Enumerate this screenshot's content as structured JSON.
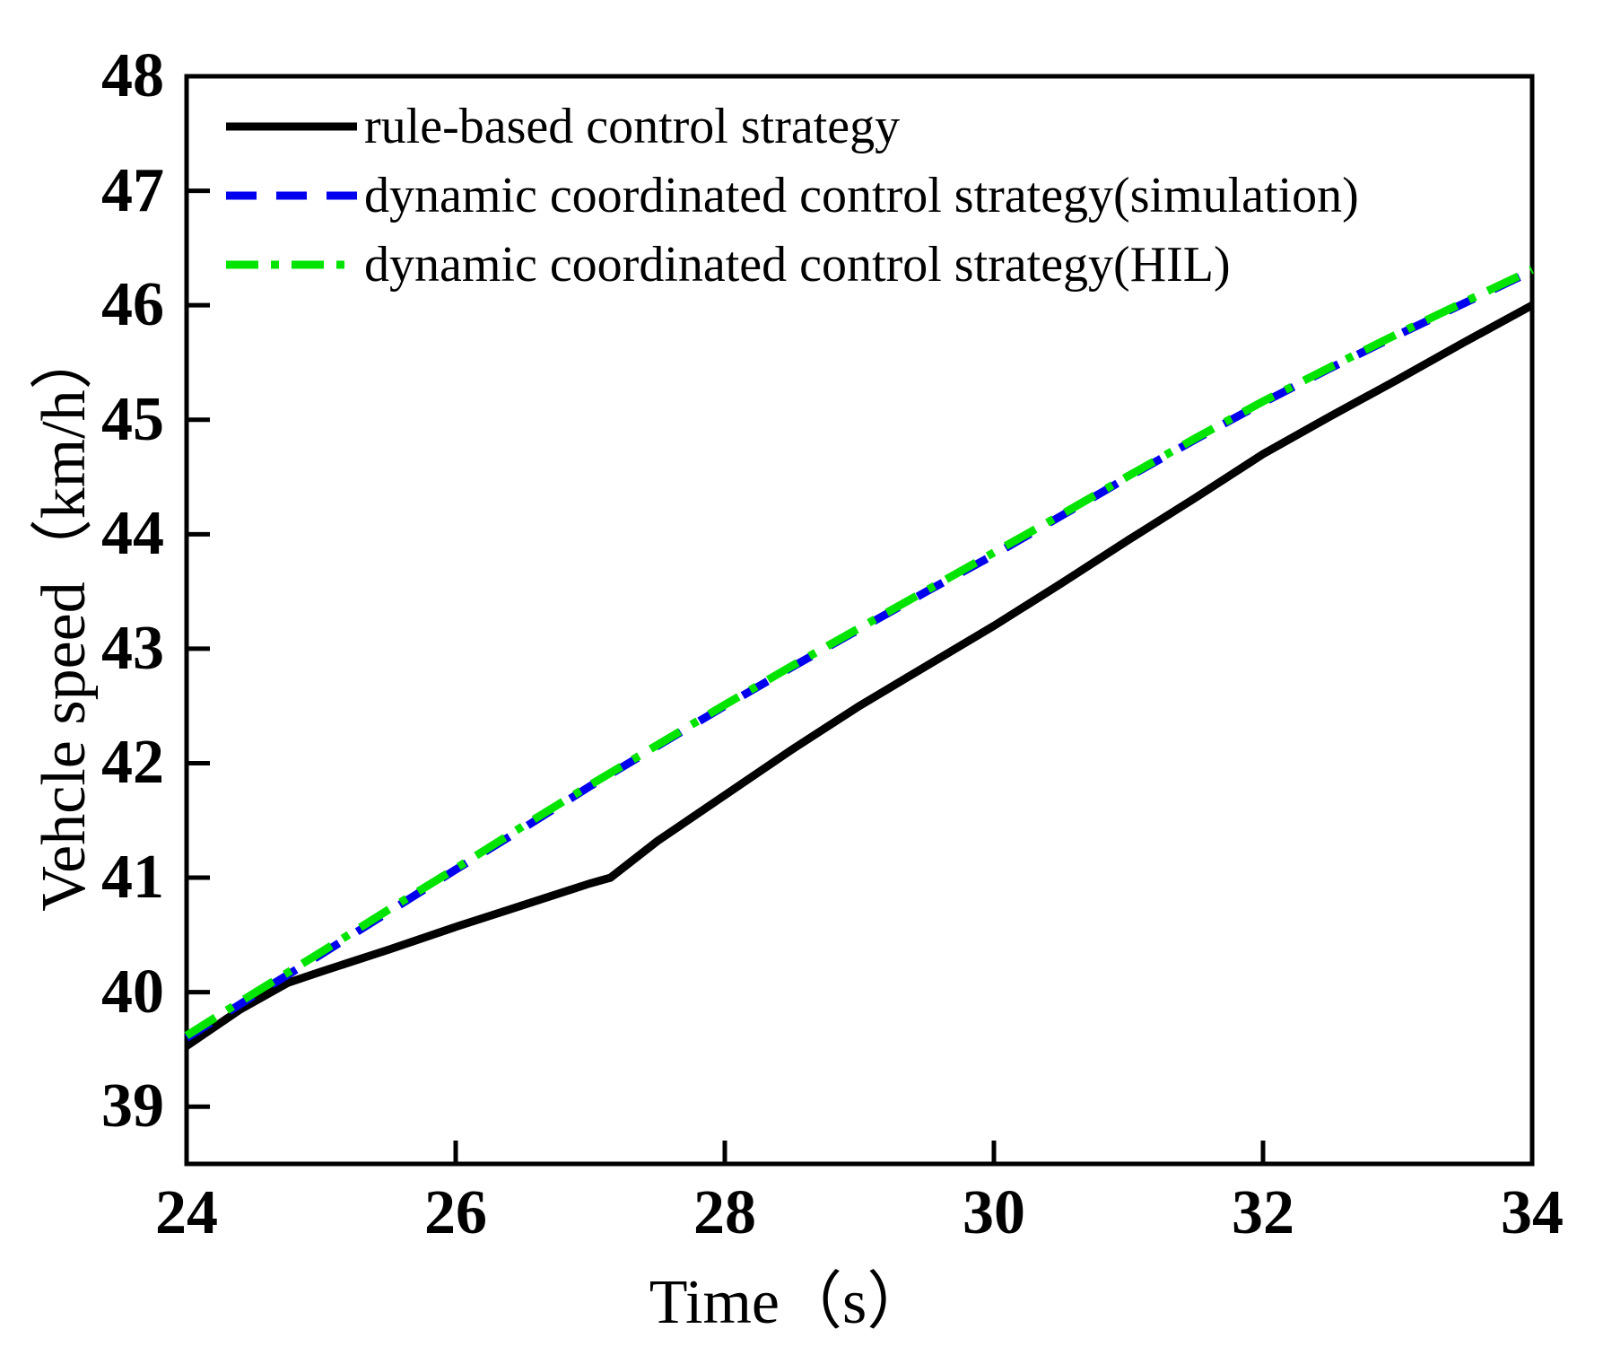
{
  "chart_data": {
    "type": "line",
    "title": "",
    "xlabel": "Time（s）",
    "ylabel": "Vehcle speed（km/h）",
    "x_range": [
      24,
      34
    ],
    "y_range": [
      38.5,
      48
    ],
    "x_ticks": [
      24,
      26,
      28,
      30,
      32,
      34
    ],
    "y_ticks": [
      39,
      40,
      41,
      42,
      43,
      44,
      45,
      46,
      47,
      48
    ],
    "grid": false,
    "legend_position": "top-left-inside",
    "series": [
      {
        "name": "rule-based control strategy",
        "color": "#000000",
        "style": "solid",
        "x": [
          24,
          24.4,
          24.75,
          25,
          25.5,
          26,
          26.5,
          27,
          27.15,
          27.5,
          28,
          28.5,
          29,
          29.5,
          30,
          30.5,
          31,
          31.5,
          32,
          32.5,
          33,
          33.5,
          34
        ],
        "y": [
          39.53,
          39.85,
          40.08,
          40.18,
          40.37,
          40.57,
          40.76,
          40.95,
          41.0,
          41.32,
          41.72,
          42.12,
          42.5,
          42.85,
          43.2,
          43.57,
          43.95,
          44.32,
          44.7,
          45.03,
          45.35,
          45.68,
          46.0
        ]
      },
      {
        "name": "dynamic coordinated control strategy(simulation)",
        "color": "#0000EE",
        "style": "dashed",
        "x": [
          24,
          24.5,
          25,
          25.5,
          26,
          26.5,
          27,
          27.5,
          28,
          28.5,
          29,
          29.5,
          30,
          30.5,
          31,
          31.5,
          32,
          32.5,
          33,
          33.5,
          34
        ],
        "y": [
          39.6,
          39.97,
          40.33,
          40.7,
          41.07,
          41.43,
          41.8,
          42.15,
          42.5,
          42.84,
          43.17,
          43.5,
          43.82,
          44.16,
          44.5,
          44.83,
          45.15,
          45.45,
          45.74,
          46.02,
          46.3
        ]
      },
      {
        "name": "dynamic coordinated control strategy(HIL)",
        "color": "#00E400",
        "style": "dash-dot",
        "x": [
          24,
          24.5,
          25,
          25.5,
          26,
          26.5,
          27,
          27.5,
          28,
          28.5,
          29,
          29.5,
          30,
          30.5,
          31,
          31.5,
          32,
          32.5,
          33,
          33.5,
          34
        ],
        "y": [
          39.62,
          39.99,
          40.35,
          40.72,
          41.08,
          41.45,
          41.81,
          42.16,
          42.51,
          42.85,
          43.18,
          43.51,
          43.84,
          44.17,
          44.51,
          44.84,
          45.16,
          45.46,
          45.75,
          46.03,
          46.31
        ]
      }
    ]
  }
}
